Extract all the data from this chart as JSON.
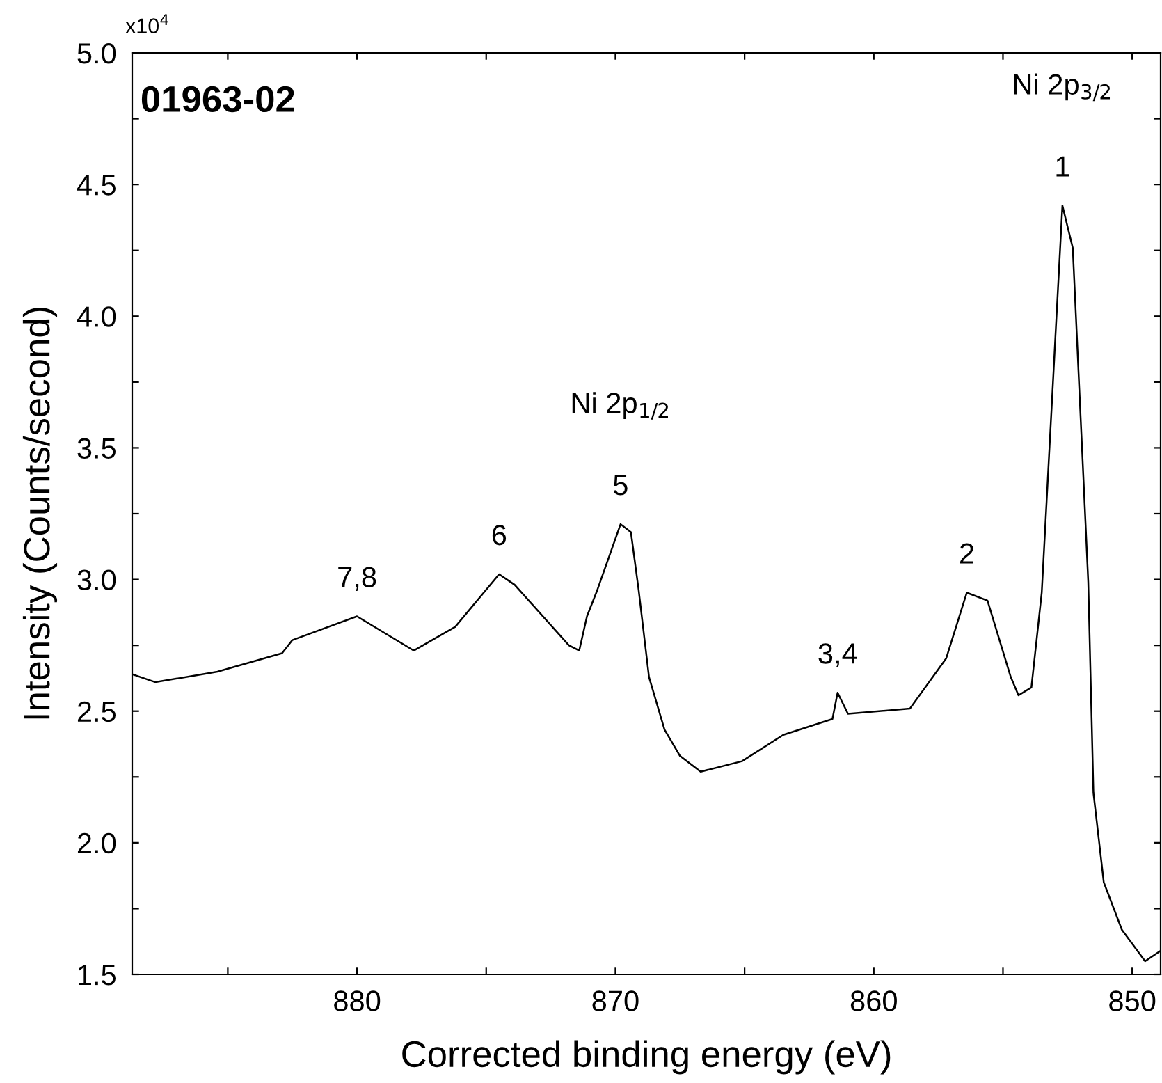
{
  "chart_data": {
    "type": "line",
    "xlabel": "Corrected binding energy (eV)",
    "ylabel": "Intensity (Counts/second)",
    "xlim": [
      888.7,
      848.9
    ],
    "xticks": [
      {
        "value": 885,
        "label": null
      },
      880,
      {
        "value": 875,
        "label": null
      },
      870,
      {
        "value": 865,
        "label": null
      },
      860,
      {
        "value": 855,
        "label": null
      },
      850
    ],
    "ylim": [
      1.5,
      5.0
    ],
    "yticks": [
      1.5,
      {
        "value": 1.75,
        "label": null
      },
      {
        "value": 2,
        "label": "2.0"
      },
      {
        "value": 2.25,
        "label": null
      },
      2.5,
      {
        "value": 2.75,
        "label": null
      },
      {
        "value": 3,
        "label": "3.0"
      },
      {
        "value": 3.25,
        "label": null
      },
      3.5,
      {
        "value": 3.75,
        "label": null
      },
      {
        "value": 4,
        "label": "4.0"
      },
      {
        "value": 4.25,
        "label": null
      },
      4.5,
      {
        "value": 4.75,
        "label": null
      },
      {
        "value": 5,
        "label": "5.0"
      }
    ],
    "marker": "none",
    "line_style": "solid",
    "series": [
      {
        "color": "#000000",
        "x": [
          888.7,
          887.8,
          885.4,
          882.9,
          882.5,
          880.0,
          877.8,
          876.2,
          874.5,
          873.9,
          871.8,
          871.4,
          871.1,
          870.7,
          869.8,
          869.4,
          869.1,
          868.7,
          868.1,
          867.5,
          866.7,
          865.1,
          863.5,
          861.6,
          861.4,
          861.0,
          858.6,
          857.2,
          856.4,
          855.6,
          854.7,
          854.4,
          853.9,
          853.5,
          852.7,
          852.3,
          851.7,
          851.5,
          851.1,
          850.4,
          849.5,
          848.9
        ],
        "values": [
          2.64,
          2.61,
          2.65,
          2.72,
          2.77,
          2.86,
          2.73,
          2.82,
          3.02,
          2.98,
          2.75,
          2.73,
          2.86,
          2.96,
          3.21,
          3.18,
          2.96,
          2.63,
          2.43,
          2.33,
          2.27,
          2.31,
          2.41,
          2.47,
          2.57,
          2.49,
          2.51,
          2.7,
          2.95,
          2.92,
          2.63,
          2.56,
          2.59,
          2.95,
          4.42,
          4.26,
          2.99,
          2.19,
          1.85,
          1.67,
          1.55,
          1.59
        ]
      }
    ],
    "annotations": [
      "x10$^{4}$",
      "01963-02",
      {
        "text": "1",
        "x": 852.7,
        "y": 4.42
      },
      "Ni 2p$_{3/2}$",
      {
        "text": "2",
        "x": 856.4,
        "y": 2.95
      },
      {
        "text": "3,4",
        "x": 861.4,
        "y": 2.57
      },
      {
        "text": "5",
        "x": 869.8,
        "y": 3.21
      },
      "Ni 2p$_{1/2}$",
      {
        "text": "6",
        "x": 874.5,
        "y": 3.02
      },
      {
        "text": "7,8",
        "x": 880.0,
        "y": 2.86
      }
    ]
  }
}
